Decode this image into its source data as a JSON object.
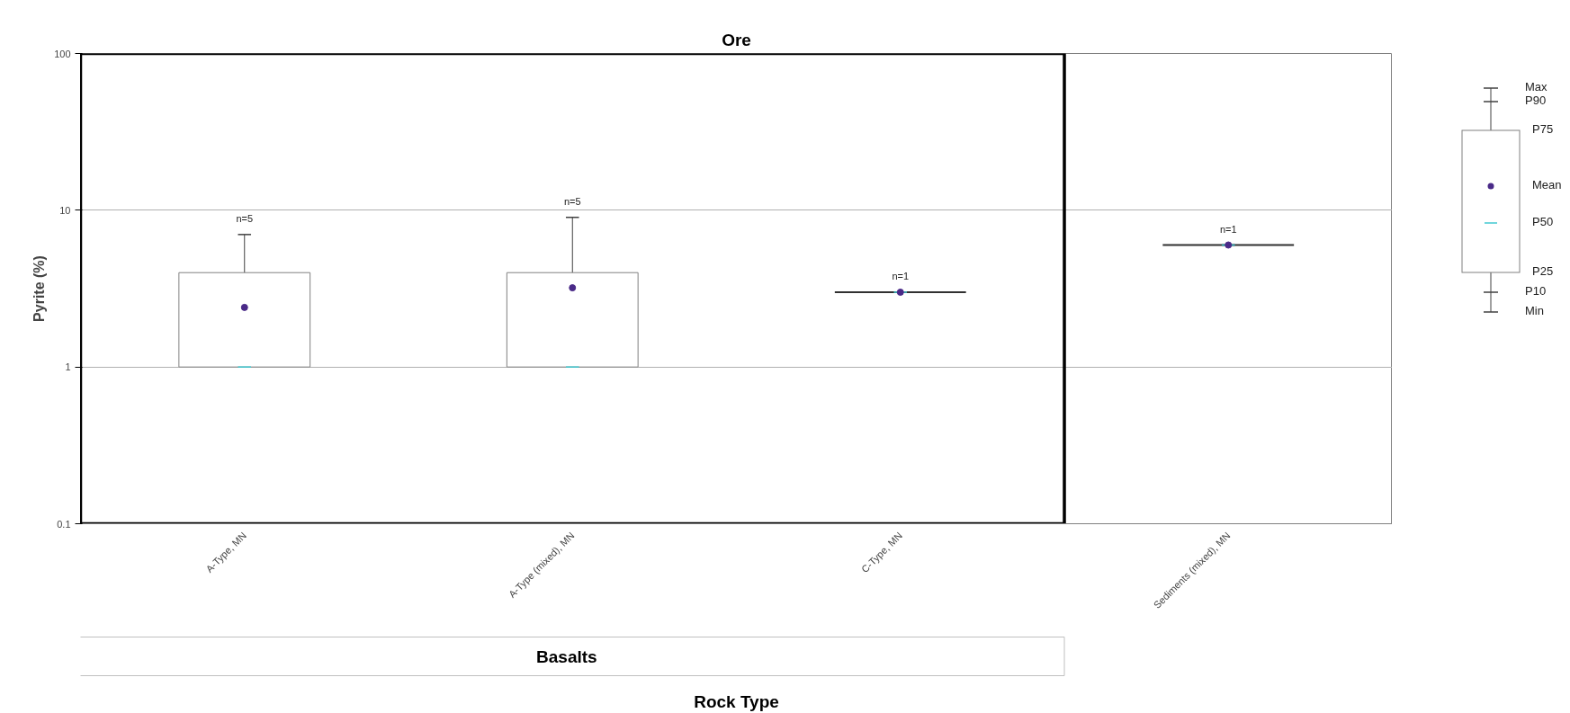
{
  "chart_data": {
    "type": "box",
    "title": "Ore",
    "xlabel": "Rock Type",
    "ylabel": "Pyrite (%)",
    "categories": [
      "A-Type, MN",
      "A-Type (mixed), MN",
      "C-Type, MN",
      "Sediments (mixed), MN"
    ],
    "boxes": [
      {
        "low": 1,
        "q1": 1,
        "median": 1,
        "q3": 4,
        "high": 7,
        "mean": 2.4
      },
      {
        "low": 1,
        "q1": 1,
        "median": 1,
        "q3": 4,
        "high": 9,
        "mean": 3.2
      },
      {
        "low": 3,
        "q1": 3,
        "median": 3,
        "q3": 3,
        "high": 3,
        "mean": 3
      },
      {
        "low": 6,
        "q1": 6,
        "median": 6,
        "q3": 6,
        "high": 6,
        "mean": 6
      }
    ],
    "log": "y",
    "ylim": [
      0.1,
      100
    ],
    "yticks": [
      0.1,
      1,
      10,
      100
    ],
    "grid": "y",
    "annotations": [
      "n=5",
      "n=5",
      "n=1",
      "n=1",
      "Basalts",
      "Max",
      "P90",
      "P75",
      "Mean",
      "P50",
      "P25",
      "P10",
      "Min"
    ]
  }
}
